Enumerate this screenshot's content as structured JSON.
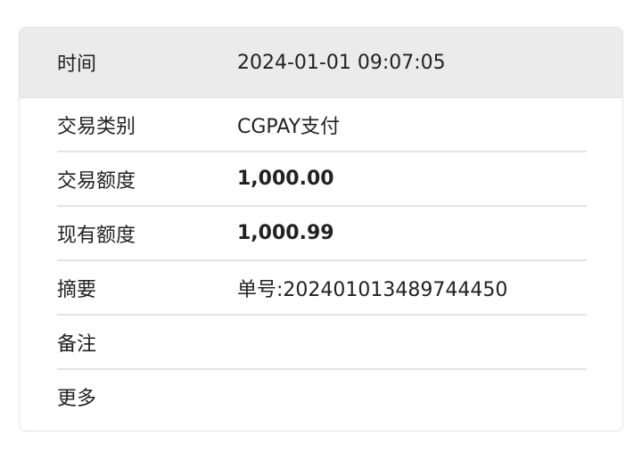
{
  "header": {
    "label": "时间",
    "value": "2024-01-01 09:07:05"
  },
  "rows": [
    {
      "label": "交易类别",
      "value": "CGPAY支付"
    },
    {
      "label": "交易额度",
      "value": "1,000.00"
    },
    {
      "label": "现有额度",
      "value": "1,000.99"
    },
    {
      "label": "摘要",
      "value": "单号:202401013489744450"
    },
    {
      "label": "备注",
      "value": ""
    },
    {
      "label": "更多",
      "value": ""
    }
  ]
}
